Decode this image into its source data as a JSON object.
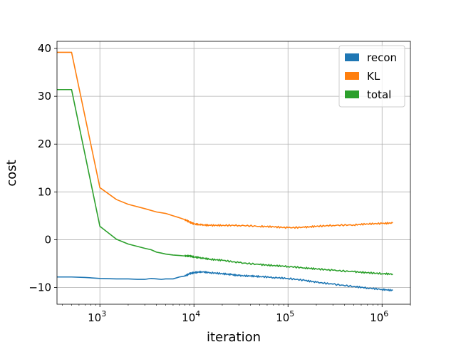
{
  "chart_data": {
    "type": "line",
    "xlabel": "iteration",
    "ylabel": "cost",
    "xscale": "log",
    "xlim": [
      350,
      2000000
    ],
    "ylim": [
      -13.5,
      41.5
    ],
    "grid": true,
    "legend_position": "top-right",
    "yticks": [
      {
        "value": 40,
        "label": "40"
      },
      {
        "value": 30,
        "label": "30"
      },
      {
        "value": 20,
        "label": "20"
      },
      {
        "value": 10,
        "label": "10"
      },
      {
        "value": 0,
        "label": "0"
      },
      {
        "value": -10,
        "label": "−10"
      }
    ],
    "xticks": [
      {
        "value": 1000,
        "base": "10",
        "exp": "3"
      },
      {
        "value": 10000,
        "base": "10",
        "exp": "4"
      },
      {
        "value": 100000,
        "base": "10",
        "exp": "5"
      },
      {
        "value": 1000000,
        "base": "10",
        "exp": "6"
      }
    ],
    "series": [
      {
        "name": "recon",
        "color": "#1f77b4",
        "x": [
          350,
          500,
          700,
          1000,
          1500,
          2000,
          2500,
          3000,
          3500,
          4000,
          4500,
          5000,
          6000,
          7000,
          8000,
          9000,
          10000,
          12000,
          15000,
          20000,
          25000,
          30000,
          40000,
          50000,
          70000,
          100000,
          150000,
          200000,
          300000,
          500000,
          700000,
          1000000,
          1300000
        ],
        "y": [
          -7.8,
          -7.8,
          -7.9,
          -8.1,
          -8.2,
          -8.2,
          -8.3,
          -8.3,
          -8.1,
          -8.2,
          -8.3,
          -8.2,
          -8.2,
          -7.8,
          -7.6,
          -7.1,
          -6.9,
          -6.7,
          -6.9,
          -7.1,
          -7.3,
          -7.5,
          -7.6,
          -7.7,
          -7.9,
          -8.1,
          -8.5,
          -8.9,
          -9.3,
          -9.8,
          -10.1,
          -10.4,
          -10.6
        ]
      },
      {
        "name": "KL",
        "color": "#ff7f0e",
        "x": [
          350,
          500,
          1000,
          1500,
          2000,
          3000,
          4000,
          5000,
          6000,
          7000,
          8000,
          9000,
          10000,
          12000,
          15000,
          20000,
          30000,
          50000,
          70000,
          100000,
          150000,
          200000,
          300000,
          500000,
          700000,
          1000000,
          1300000
        ],
        "y": [
          39.2,
          39.2,
          10.9,
          8.4,
          7.4,
          6.5,
          5.8,
          5.5,
          5.0,
          4.6,
          4.2,
          3.7,
          3.3,
          3.1,
          3.0,
          3.0,
          3.0,
          2.8,
          2.7,
          2.5,
          2.6,
          2.8,
          3.0,
          3.1,
          3.3,
          3.4,
          3.5
        ]
      },
      {
        "name": "total",
        "color": "#2ca02c",
        "x": [
          350,
          500,
          1000,
          1500,
          2000,
          3000,
          3500,
          4000,
          4500,
          5000,
          6000,
          7000,
          8000,
          9000,
          10000,
          12000,
          15000,
          20000,
          30000,
          50000,
          70000,
          100000,
          150000,
          200000,
          300000,
          500000,
          700000,
          1000000,
          1300000
        ],
        "y": [
          31.4,
          31.4,
          2.8,
          0.1,
          -0.9,
          -1.8,
          -2.1,
          -2.6,
          -2.8,
          -3.0,
          -3.2,
          -3.3,
          -3.4,
          -3.4,
          -3.6,
          -3.8,
          -4.1,
          -4.3,
          -4.8,
          -5.2,
          -5.4,
          -5.6,
          -5.9,
          -6.1,
          -6.4,
          -6.7,
          -6.9,
          -7.1,
          -7.2
        ]
      }
    ]
  }
}
